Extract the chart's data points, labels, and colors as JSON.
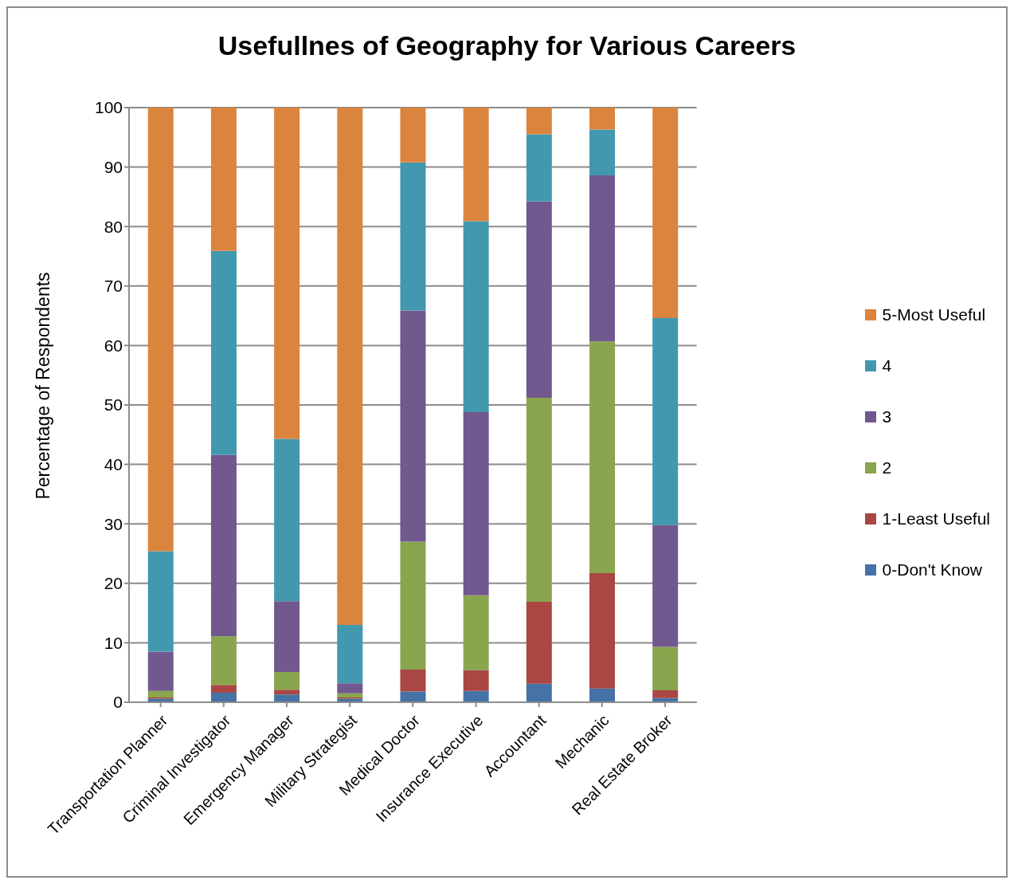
{
  "chart_data": {
    "type": "bar",
    "title": "Usefullnes of Geography for Various Careers",
    "ylabel": "Percentage of Respondents",
    "categories": [
      "Transportation Planner",
      "Criminal Investigator",
      "Emergency Manager",
      "Military Strategist",
      "Medical Doctor",
      "Insurance Executive",
      "Accountant",
      "Mechanic",
      "Real Estate Broker"
    ],
    "stacked": true,
    "ylim": [
      0,
      100
    ],
    "yticks": [
      0,
      10,
      20,
      30,
      40,
      50,
      60,
      70,
      80,
      90,
      100
    ],
    "grid": "y",
    "legend": "right",
    "series": [
      {
        "name": "0-Don't Know",
        "color": "#4572a7",
        "values": [
          0.6,
          1.6,
          1.3,
          0.6,
          1.8,
          1.9,
          3.1,
          2.3,
          0.7
        ]
      },
      {
        "name": "1-Least Useful",
        "color": "#aa4643",
        "values": [
          0.2,
          1.3,
          0.8,
          0.2,
          3.7,
          3.5,
          13.8,
          19.4,
          1.3
        ]
      },
      {
        "name": "2",
        "color": "#89a54e",
        "values": [
          1.1,
          8.2,
          3.0,
          0.7,
          21.5,
          12.6,
          34.3,
          39.0,
          7.3
        ]
      },
      {
        "name": "3",
        "color": "#71588f",
        "values": [
          6.6,
          30.5,
          11.9,
          1.7,
          38.9,
          30.8,
          33.0,
          27.9,
          20.5
        ]
      },
      {
        "name": "4",
        "color": "#4198af",
        "values": [
          16.9,
          34.3,
          27.3,
          9.8,
          24.9,
          32.1,
          11.3,
          7.7,
          34.8
        ]
      },
      {
        "name": "5-Most Useful",
        "color": "#db843d",
        "values": [
          74.6,
          24.1,
          55.7,
          87.0,
          9.2,
          19.1,
          4.5,
          3.7,
          35.4
        ]
      }
    ]
  }
}
